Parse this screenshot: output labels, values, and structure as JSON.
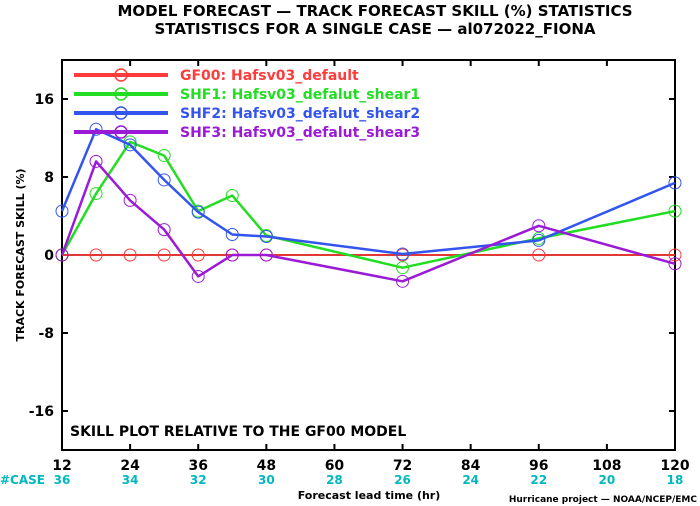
{
  "title_line1": "MODEL FORECAST — TRACK FORECAST SKILL (%) STATISTICS",
  "title_line2": "STATISTISCS FOR A SINGLE CASE — al072022_FIONA",
  "annotation": "SKILL PLOT RELATIVE TO THE GF00 MODEL",
  "credit": "Hurricane project — NOAA/NCEP/EMC",
  "case_label": "#CASE",
  "colors": {
    "case_text": "#00b8c0",
    "zero_line": "#8b2e1e"
  },
  "chart_data": {
    "type": "line",
    "xlabel": "Forecast lead time (hr)",
    "ylabel": "TRACK FORECAST SKILL (%)",
    "xlim": [
      12,
      120
    ],
    "ylim": [
      -20,
      20
    ],
    "xticks": [
      12,
      24,
      36,
      48,
      60,
      72,
      84,
      96,
      108,
      120
    ],
    "yticks": [
      16,
      8,
      0,
      -8,
      -16
    ],
    "grid": false,
    "legend_position": "top-left",
    "case_counts": {
      "x": [
        12,
        24,
        36,
        48,
        60,
        72,
        84,
        96,
        108,
        120
      ],
      "counts": [
        36,
        34,
        32,
        30,
        28,
        26,
        24,
        22,
        20,
        18
      ]
    },
    "series": [
      {
        "name": "GF00: Hafsv03_default",
        "color": "#ff3b3b",
        "x": [
          12,
          18,
          24,
          30,
          36,
          42,
          48,
          72,
          96,
          120
        ],
        "y": [
          0,
          0,
          0,
          0,
          0,
          0,
          0,
          0,
          0,
          0
        ]
      },
      {
        "name": "SHF1: Hafsv03_defalut_shear1",
        "color": "#22dd22",
        "x": [
          12,
          18,
          24,
          30,
          36,
          42,
          48,
          72,
          96,
          120
        ],
        "y": [
          0,
          6.3,
          11.6,
          10.2,
          4.5,
          6.1,
          2.0,
          -1.3,
          1.7,
          4.5
        ]
      },
      {
        "name": "SHF2: Hafsv03_defalut_shear2",
        "color": "#3355ee",
        "x": [
          12,
          18,
          24,
          30,
          36,
          42,
          48,
          72,
          96,
          120
        ],
        "y": [
          4.5,
          12.9,
          11.3,
          7.7,
          4.4,
          2.1,
          1.9,
          0.1,
          1.5,
          7.4
        ]
      },
      {
        "name": "SHF3: Hafsv03_defalut_shear3",
        "color": "#9a1ad6",
        "x": [
          12,
          18,
          24,
          30,
          36,
          42,
          48,
          72,
          96,
          120
        ],
        "y": [
          0,
          9.6,
          5.6,
          2.6,
          -2.2,
          0,
          0,
          -2.7,
          3.0,
          -0.9
        ]
      }
    ]
  }
}
